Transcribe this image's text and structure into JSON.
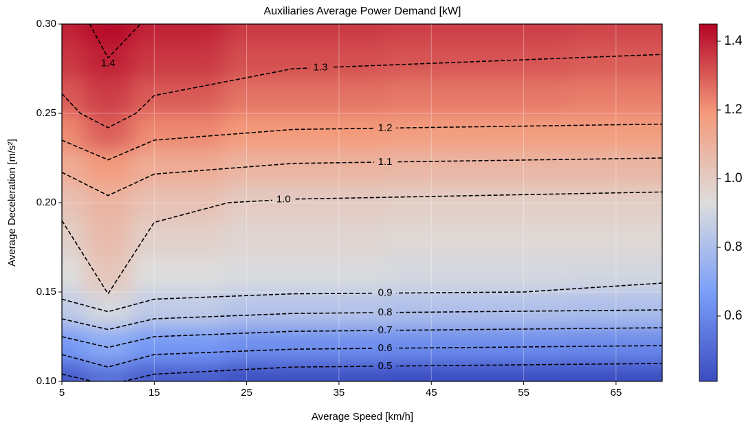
{
  "chart_data": {
    "type": "contour",
    "title": "Auxiliaries Average Power Demand [kW]",
    "x_label": "Average Speed [km/h]",
    "y_label": "Average Deceleration  [m/s²]",
    "xlim": [
      5,
      70
    ],
    "ylim": [
      0.1,
      0.3
    ],
    "xticks": [
      5,
      15,
      25,
      35,
      45,
      55,
      65
    ],
    "yticks": [
      {
        "value": 0.1,
        "label": "0.10"
      },
      0.15,
      {
        "value": 0.2,
        "label": "0.20"
      },
      0.25,
      {
        "value": 0.3,
        "label": "0.30"
      }
    ],
    "grid": true,
    "colormap": "coolwarm",
    "clim": [
      0.41,
      1.45
    ],
    "cticks": [
      0.6,
      0.8,
      {
        "value": 1,
        "label": "1.0"
      },
      1.2,
      1.4
    ],
    "heatmap": {
      "x": [
        5,
        10,
        15,
        30,
        50,
        70
      ],
      "y": [
        0.1,
        0.12,
        0.14,
        0.16,
        0.18,
        0.2,
        0.22,
        0.24,
        0.26,
        0.28,
        0.3
      ],
      "z": [
        [
          0.45,
          0.52,
          0.46,
          0.42,
          0.41,
          0.41
        ],
        [
          0.65,
          0.71,
          0.65,
          0.62,
          0.61,
          0.6
        ],
        [
          0.85,
          0.91,
          0.85,
          0.82,
          0.81,
          0.8
        ],
        [
          0.93,
          1.02,
          0.93,
          0.92,
          0.91,
          0.9
        ],
        [
          0.98,
          1.06,
          0.98,
          0.96,
          0.95,
          0.95
        ],
        [
          1.04,
          1.09,
          1.04,
          1.0,
          0.99,
          0.99
        ],
        [
          1.12,
          1.18,
          1.12,
          1.09,
          1.08,
          1.08
        ],
        [
          1.22,
          1.29,
          1.22,
          1.19,
          1.18,
          1.18
        ],
        [
          1.3,
          1.35,
          1.3,
          1.26,
          1.25,
          1.24
        ],
        [
          1.36,
          1.4,
          1.36,
          1.32,
          1.31,
          1.3
        ],
        [
          1.4,
          1.44,
          1.4,
          1.36,
          1.35,
          1.34
        ]
      ]
    },
    "contours": [
      {
        "level": 1.4,
        "x": [
          8,
          10,
          13.5
        ],
        "y": [
          0.3,
          0.281,
          0.3
        ]
      },
      {
        "level": 1.3,
        "x": [
          5,
          7,
          10,
          13,
          15,
          30,
          70
        ],
        "y": [
          0.261,
          0.25,
          0.242,
          0.25,
          0.26,
          0.275,
          0.283
        ]
      },
      {
        "level": 1.2,
        "x": [
          5,
          10,
          15,
          30,
          70
        ],
        "y": [
          0.235,
          0.224,
          0.235,
          0.241,
          0.244
        ]
      },
      {
        "level": 1.1,
        "x": [
          5,
          10,
          15,
          30,
          70
        ],
        "y": [
          0.217,
          0.204,
          0.216,
          0.222,
          0.225
        ]
      },
      {
        "level": {
          "value": 1,
          "label": "1.0"
        },
        "x": [
          5,
          10,
          15,
          23,
          30,
          70
        ],
        "y": [
          0.19,
          0.149,
          0.189,
          0.2,
          0.202,
          0.206
        ]
      },
      {
        "level": 0.9,
        "x": [
          5,
          10,
          15,
          30,
          55,
          70
        ],
        "y": [
          0.146,
          0.139,
          0.146,
          0.149,
          0.15,
          0.155
        ]
      },
      {
        "level": 0.8,
        "x": [
          5,
          10,
          15,
          30,
          70
        ],
        "y": [
          0.135,
          0.129,
          0.135,
          0.138,
          0.14
        ]
      },
      {
        "level": 0.7,
        "x": [
          5,
          10,
          15,
          30,
          70
        ],
        "y": [
          0.125,
          0.119,
          0.125,
          0.128,
          0.13
        ]
      },
      {
        "level": 0.6,
        "x": [
          5,
          10,
          15,
          30,
          70
        ],
        "y": [
          0.115,
          0.108,
          0.115,
          0.118,
          0.12
        ]
      },
      {
        "level": 0.5,
        "x": [
          5,
          10,
          15,
          30,
          70
        ],
        "y": [
          0.104,
          0.098,
          0.104,
          0.108,
          0.11
        ]
      }
    ]
  }
}
